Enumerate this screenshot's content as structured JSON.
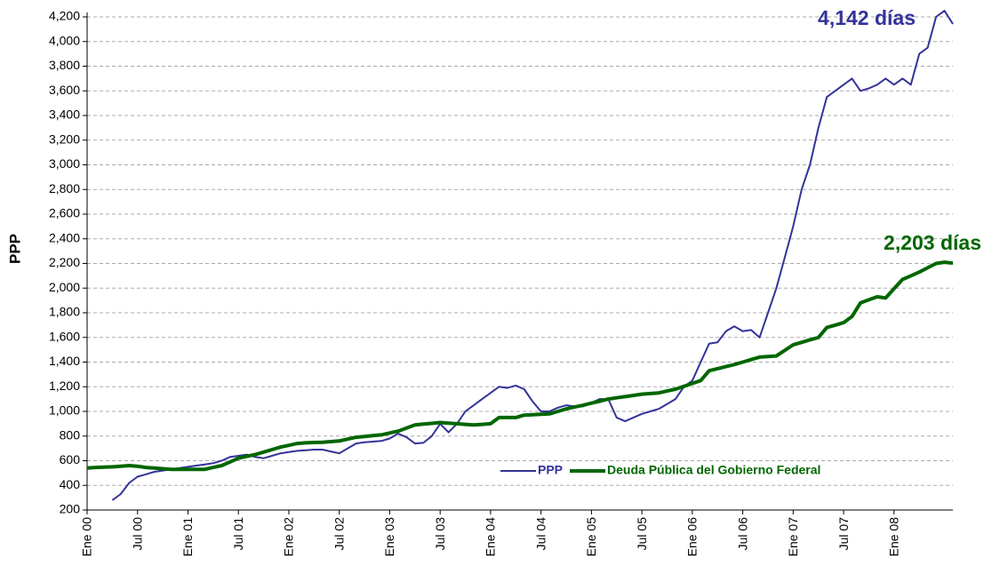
{
  "chart_data": {
    "type": "line",
    "y_label": "PPP",
    "categories": [
      "Ene 00",
      null,
      null,
      null,
      null,
      null,
      "Jul 00",
      null,
      null,
      null,
      null,
      null,
      "Ene 01",
      null,
      null,
      null,
      null,
      null,
      "Jul 01",
      null,
      null,
      null,
      null,
      null,
      "Ene 02",
      null,
      null,
      null,
      null,
      null,
      "Jul 02",
      null,
      null,
      null,
      null,
      null,
      "Ene 03",
      null,
      null,
      null,
      null,
      null,
      "Jul 03",
      null,
      null,
      null,
      null,
      null,
      "Ene 04",
      null,
      null,
      null,
      null,
      null,
      "Jul 04",
      null,
      null,
      null,
      null,
      null,
      "Ene 05",
      null,
      null,
      null,
      null,
      null,
      "Jul 05",
      null,
      null,
      null,
      null,
      null,
      "Ene 06",
      null,
      null,
      null,
      null,
      null,
      "Jul 06",
      null,
      null,
      null,
      null,
      null,
      "Ene 07",
      null,
      null,
      null,
      null,
      null,
      "Jul 07",
      null,
      null,
      null,
      null,
      null,
      "Ene 08",
      null,
      null,
      null,
      null,
      null,
      null,
      null
    ],
    "series": [
      {
        "name": "PPP",
        "color": "#333399",
        "width": 2,
        "values": [
          null,
          null,
          null,
          280,
          330,
          420,
          470,
          490,
          510,
          520,
          530,
          540,
          550,
          560,
          570,
          580,
          600,
          630,
          640,
          650,
          630,
          620,
          640,
          660,
          670,
          680,
          685,
          690,
          690,
          675,
          660,
          700,
          740,
          750,
          755,
          760,
          780,
          820,
          790,
          740,
          745,
          800,
          900,
          830,
          900,
          1000,
          1050,
          1100,
          1150,
          1200,
          1190,
          1210,
          1180,
          1080,
          1000,
          1000,
          1030,
          1050,
          1040,
          1040,
          1070,
          1100,
          1100,
          950,
          920,
          950,
          980,
          1000,
          1020,
          1060,
          1100,
          1200,
          1250,
          1400,
          1550,
          1560,
          1650,
          1690,
          1650,
          1660,
          1600,
          1800,
          2000,
          2250,
          2500,
          2800,
          3000,
          3300,
          3550,
          3600,
          3650,
          3700,
          3600,
          3620,
          3650,
          3700,
          3650,
          3700,
          3650,
          3900,
          3950,
          4200,
          4250,
          4142
        ]
      },
      {
        "name": "Deuda Pública del Gobierno Federal",
        "color": "#006600",
        "width": 4,
        "values": [
          540,
          545,
          548,
          550,
          555,
          560,
          555,
          545,
          540,
          535,
          530,
          530,
          530,
          530,
          530,
          545,
          560,
          590,
          620,
          635,
          650,
          670,
          690,
          710,
          725,
          740,
          745,
          748,
          750,
          755,
          760,
          775,
          790,
          797,
          803,
          810,
          825,
          840,
          865,
          890,
          897,
          903,
          910,
          905,
          900,
          895,
          890,
          895,
          900,
          950,
          950,
          950,
          970,
          973,
          977,
          980,
          1000,
          1020,
          1035,
          1050,
          1067,
          1083,
          1100,
          1110,
          1120,
          1130,
          1140,
          1145,
          1150,
          1165,
          1180,
          1203,
          1227,
          1250,
          1330,
          1347,
          1363,
          1380,
          1400,
          1420,
          1440,
          1445,
          1450,
          1495,
          1540,
          1560,
          1580,
          1600,
          1680,
          1700,
          1720,
          1770,
          1880,
          1905,
          1930,
          1920,
          1995,
          2070,
          2100,
          2130,
          2165,
          2200,
          2210,
          2203
        ]
      }
    ],
    "annotations": [
      {
        "text": "4,142 días",
        "color": "#333399"
      },
      {
        "text": "2,203 días",
        "color": "#006600"
      }
    ],
    "ylim": [
      200,
      4200
    ],
    "yticks": [
      200,
      400,
      600,
      800,
      {
        "value": 1000,
        "label": "1,000"
      },
      {
        "value": 1200,
        "label": "1,200"
      },
      {
        "value": 1400,
        "label": "1,400"
      },
      {
        "value": 1600,
        "label": "1,600"
      },
      {
        "value": 1800,
        "label": "1,800"
      },
      {
        "value": 2000,
        "label": "2,000"
      },
      {
        "value": 2200,
        "label": "2,200"
      },
      {
        "value": 2400,
        "label": "2,400"
      },
      {
        "value": 2600,
        "label": "2,600"
      },
      {
        "value": 2800,
        "label": "2,800"
      },
      {
        "value": 3000,
        "label": "3,000"
      },
      {
        "value": 3200,
        "label": "3,200"
      },
      {
        "value": 3400,
        "label": "3,400"
      },
      {
        "value": 3600,
        "label": "3,600"
      },
      {
        "value": 3800,
        "label": "3,800"
      },
      {
        "value": 4000,
        "label": "4,000"
      },
      {
        "value": 4200,
        "label": "4,200"
      }
    ],
    "grid": true,
    "legend": "lower right"
  }
}
